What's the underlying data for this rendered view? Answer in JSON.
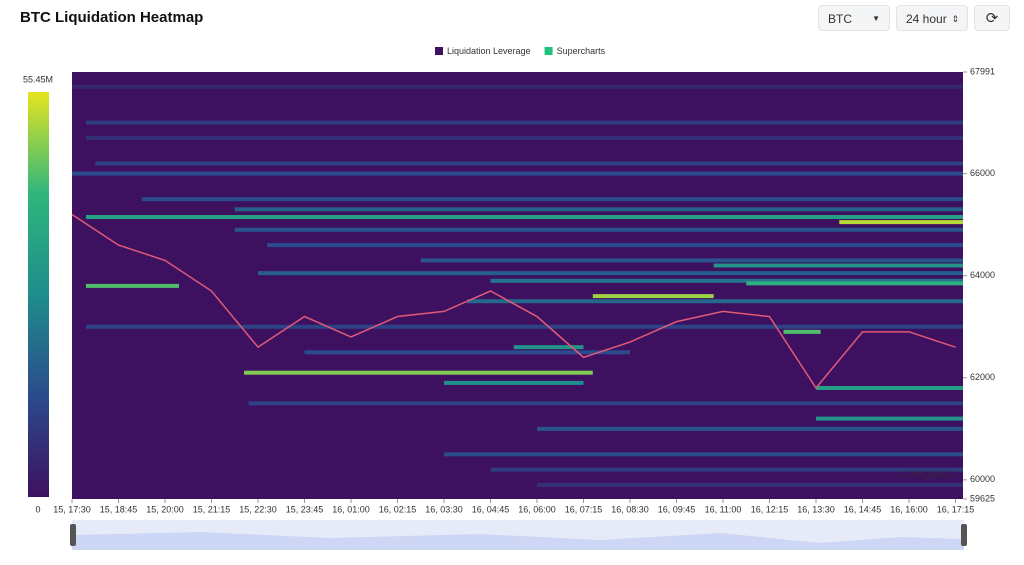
{
  "header": {
    "title": "BTC Liquidation Heatmap",
    "symbol": "BTC",
    "range": "24 hour"
  },
  "chart_data": {
    "type": "heatmap",
    "legend": [
      {
        "name": "Liquidation Leverage",
        "color": "#3d1160"
      },
      {
        "name": "Supercharts",
        "color": "#1fc37a"
      }
    ],
    "colorbar": {
      "max_label": "55.45M",
      "min_label": "0",
      "colors": [
        "#3d1160",
        "#2b4b8c",
        "#1f8d8c",
        "#2fb67c",
        "#e5e51f"
      ]
    },
    "watermark": "coinglass",
    "categories": [
      "15, 17:30",
      "15, 18:45",
      "15, 20:00",
      "15, 21:15",
      "15, 22:30",
      "15, 23:45",
      "16, 01:00",
      "16, 02:15",
      "16, 03:30",
      "16, 04:45",
      "16, 06:00",
      "16, 07:15",
      "16, 08:30",
      "16, 09:45",
      "16, 11:00",
      "16, 12:15",
      "16, 13:30",
      "16, 14:45",
      "16, 16:00",
      "16, 17:15"
    ],
    "price": {
      "color": "#e05a78",
      "values": [
        65200,
        64600,
        64300,
        63700,
        62600,
        63200,
        62800,
        63200,
        63300,
        63700,
        63200,
        62400,
        62700,
        63100,
        63300,
        63200,
        61800,
        62900,
        62900,
        62600
      ]
    },
    "bands": {
      "price": [
        67700,
        67000,
        66700,
        66200,
        66000,
        65500,
        65300,
        65150,
        65050,
        64900,
        64600,
        64300,
        64200,
        64050,
        63900,
        63850,
        63800,
        63600,
        63500,
        63000,
        62900,
        62600,
        62500,
        62100,
        61900,
        61800,
        61500,
        61200,
        61000,
        60500,
        60200,
        59900
      ],
      "start": [
        0,
        0.3,
        0.3,
        0.5,
        0,
        1.5,
        3.5,
        0.3,
        16.5,
        3.5,
        4.2,
        7.5,
        13.8,
        4,
        9,
        14.5,
        0.3,
        11.2,
        8.5,
        0.3,
        15.3,
        9.5,
        5,
        3.7,
        8,
        16,
        3.8,
        16,
        10,
        8,
        9,
        10
      ],
      "end": [
        19.16,
        19.16,
        19.16,
        19.16,
        19.16,
        19.16,
        19.16,
        19.16,
        19.16,
        19.16,
        19.16,
        19.16,
        19.16,
        19.16,
        19.16,
        19.16,
        2.3,
        13.8,
        19.16,
        19.16,
        16.1,
        11,
        12,
        11.2,
        11,
        19.16,
        19.16,
        19.16,
        19.16,
        19.16,
        19.16,
        19.16
      ],
      "values": [
        5,
        10,
        8,
        12,
        14,
        14,
        18,
        34,
        52,
        16,
        14,
        16,
        30,
        18,
        22,
        40,
        44,
        50,
        20,
        12,
        44,
        30,
        14,
        48,
        28,
        34,
        12,
        30,
        16,
        14,
        10,
        8
      ]
    },
    "vmax": 55.45,
    "ylim": [
      59625,
      67991
    ],
    "yticks": [
      59625,
      60000,
      62000,
      64000,
      66000,
      67991
    ]
  }
}
